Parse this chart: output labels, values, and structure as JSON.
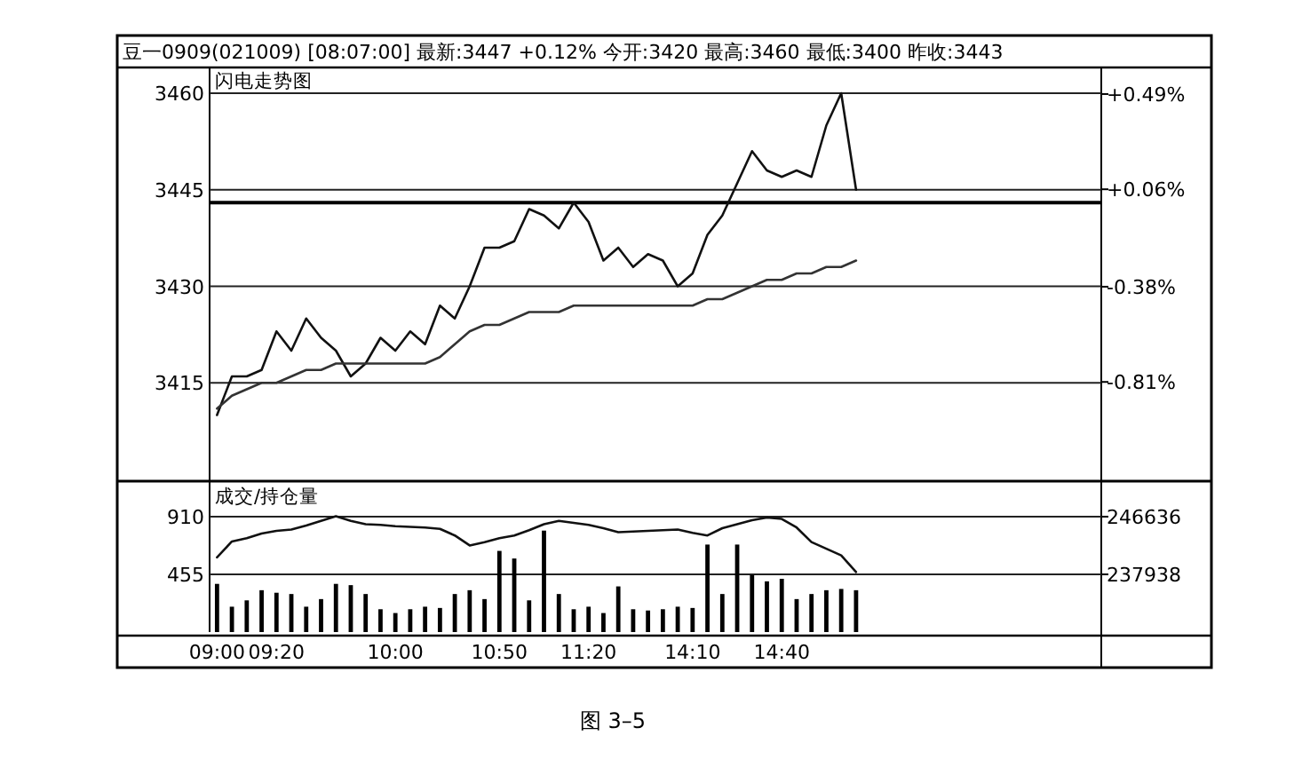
{
  "chart_data": [
    {
      "type": "line",
      "title": "豆一0909(021009) [08:07:00] 最新:3447 +0.12% 今开:3420 最高:3460 最低:3400 昨收:3443",
      "subtitle": "闪电走势图",
      "categories": [
        null,
        null,
        null,
        null,
        null,
        null,
        null,
        null,
        null,
        null,
        null,
        null,
        null,
        null,
        null,
        null,
        null,
        null,
        null,
        null,
        null,
        null,
        null,
        null,
        null,
        null,
        null,
        null,
        null,
        null,
        null,
        null,
        null,
        null,
        null,
        null,
        null,
        null,
        null,
        null,
        null,
        null,
        null,
        null,
        null,
        null,
        null,
        null,
        null,
        null,
        null,
        null,
        null,
        null,
        null,
        null,
        null,
        null,
        null,
        null
      ],
      "series": [
        {
          "color": "#111111",
          "values": [
            3410,
            3416,
            3416,
            3417,
            3423,
            3420,
            3425,
            3422,
            3420,
            3416,
            3418,
            3422,
            3420,
            3423,
            3421,
            3427,
            3425,
            3430,
            3436,
            3436,
            3437,
            3442,
            3441,
            3439,
            3443,
            3440,
            3434,
            3436,
            3433,
            3435,
            3434,
            3430,
            3432,
            3438,
            3441,
            3446,
            3451,
            3448,
            3447,
            3448,
            3447,
            3455,
            3460,
            3445,
            null,
            null,
            null,
            null,
            null,
            null,
            null,
            null,
            null,
            null,
            null,
            null,
            null,
            null,
            null,
            null
          ]
        },
        {
          "color": "#333333",
          "values": [
            3411,
            3413,
            3414,
            3415,
            3415,
            3416,
            3417,
            3417,
            3418,
            3418,
            3418,
            3418,
            3418,
            3418,
            3418,
            3419,
            3421,
            3423,
            3424,
            3424,
            3425,
            3426,
            3426,
            3426,
            3427,
            3427,
            3427,
            3427,
            3427,
            3427,
            3427,
            3427,
            3427,
            3428,
            3428,
            3429,
            3430,
            3431,
            3431,
            3432,
            3432,
            3433,
            3433,
            3434,
            null,
            null,
            null,
            null,
            null,
            null,
            null,
            null,
            null,
            null,
            null,
            null,
            null,
            null,
            null,
            null
          ]
        }
      ],
      "ylim": [
        3400,
        3464
      ],
      "yticks": [
        3415,
        3430,
        3445,
        3460
      ],
      "y2lim": [
        -1.25,
        0.61
      ],
      "y2ticks": [
        {
          "value": -0.81,
          "label": "-0.81%"
        },
        {
          "value": -0.38,
          "label": "-0.38%"
        },
        {
          "value": 0.06,
          "label": "+0.06%"
        },
        {
          "value": 0.49,
          "label": "+0.49%"
        }
      ],
      "ref_lines": [
        {
          "axis": "y",
          "value": 3443,
          "color": "#000000"
        }
      ],
      "grid": "y",
      "tick_labels": "y"
    },
    {
      "type": "bar",
      "title": "成交/持仓量",
      "categories": [
        "09:00",
        null,
        null,
        null,
        "09:20",
        null,
        null,
        null,
        null,
        null,
        null,
        null,
        "10:00",
        null,
        null,
        null,
        null,
        null,
        null,
        "10:50",
        null,
        null,
        null,
        null,
        null,
        "11:20",
        null,
        null,
        null,
        null,
        null,
        null,
        "14:10",
        null,
        null,
        null,
        null,
        null,
        "14:40",
        null,
        null,
        null,
        null,
        null,
        null,
        null,
        null,
        null,
        null,
        null,
        null,
        null,
        null,
        null,
        null,
        null,
        null,
        null,
        null,
        null
      ],
      "series": [
        {
          "color": "#000000",
          "values": [
            380,
            200,
            250,
            330,
            310,
            300,
            200,
            260,
            380,
            370,
            300,
            180,
            150,
            180,
            200,
            190,
            300,
            330,
            260,
            640,
            580,
            250,
            800,
            300,
            180,
            200,
            150,
            360,
            180,
            170,
            180,
            200,
            190,
            690,
            300,
            690,
            450,
            400,
            420,
            260,
            300,
            330,
            340,
            330,
            null,
            null,
            null,
            null,
            null,
            null,
            null,
            null,
            null,
            null,
            null,
            null,
            null,
            null,
            null,
            null
          ]
        },
        {
          "type": "line",
          "axis": "y2",
          "color": "#111111",
          "values": [
            240500,
            242900,
            243400,
            244100,
            244500,
            244700,
            245300,
            246000,
            246700,
            246000,
            245500,
            245400,
            245200,
            245100,
            245000,
            244800,
            243800,
            242300,
            242800,
            243400,
            243800,
            244600,
            245500,
            246000,
            245700,
            245400,
            244900,
            244300,
            244400,
            244500,
            244600,
            244700,
            244200,
            243800,
            244900,
            245500,
            246100,
            246500,
            246300,
            245000,
            242800,
            241800,
            240800,
            238300,
            null,
            null,
            null,
            null,
            null,
            null,
            null,
            null,
            null,
            null,
            null,
            null,
            null,
            null,
            null,
            null
          ]
        }
      ],
      "ylim": [
        0,
        1176
      ],
      "yticks": [
        455,
        910
      ],
      "y2lim": [
        229240,
        251721
      ],
      "y2ticks": [
        237938,
        246636
      ],
      "grid": "y",
      "annotations": [
        "图 3–5"
      ]
    }
  ]
}
